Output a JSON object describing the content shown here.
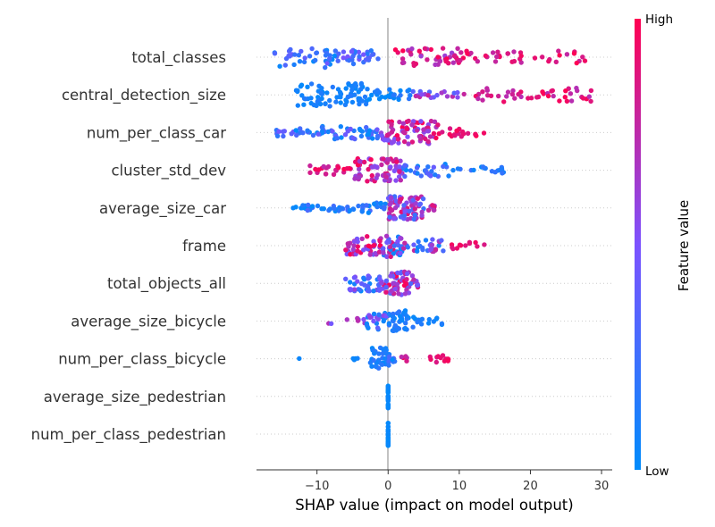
{
  "chart_data": {
    "type": "scatter",
    "subtype": "shap-beeswarm",
    "xlabel": "SHAP value (impact on model output)",
    "xlim": [
      -18.5,
      31.5
    ],
    "xticks": [
      -10,
      0,
      10,
      20,
      30
    ],
    "xtick_labels": [
      "−10",
      "0",
      "10",
      "20",
      "30"
    ],
    "colorbar": {
      "title": "Feature value",
      "high_label": "High",
      "low_label": "Low",
      "low_color": "#008bfb",
      "mid_color": "#7c52ff",
      "high_color": "#ff0052"
    },
    "zero_line_color": "#999999",
    "features": [
      {
        "name": "total_classes",
        "segments": [
          {
            "from": -16,
            "to": -7,
            "n": 40,
            "spread": 0.9,
            "lo": 0.0,
            "hi": 0.45
          },
          {
            "from": -7,
            "to": -1,
            "n": 30,
            "spread": 0.6,
            "lo": 0.1,
            "hi": 0.5
          },
          {
            "from": 1,
            "to": 10,
            "n": 45,
            "spread": 0.8,
            "lo": 0.6,
            "hi": 1.0
          },
          {
            "from": 10,
            "to": 28,
            "n": 40,
            "spread": 0.55,
            "lo": 0.75,
            "hi": 1.0
          }
        ]
      },
      {
        "name": "central_detection_size",
        "segments": [
          {
            "from": -13,
            "to": -3,
            "n": 75,
            "spread": 1.0,
            "lo": 0.0,
            "hi": 0.15
          },
          {
            "from": -3,
            "to": 3.5,
            "n": 25,
            "spread": 0.5,
            "lo": 0.0,
            "hi": 0.2
          },
          {
            "from": 3.5,
            "to": 12,
            "n": 20,
            "spread": 0.3,
            "lo": 0.3,
            "hi": 0.8
          },
          {
            "from": 12,
            "to": 29,
            "n": 45,
            "spread": 0.6,
            "lo": 0.7,
            "hi": 1.0
          }
        ]
      },
      {
        "name": "num_per_class_car",
        "segments": [
          {
            "from": -16,
            "to": -10,
            "n": 20,
            "spread": 0.35,
            "lo": 0.0,
            "hi": 0.5
          },
          {
            "from": -10,
            "to": -1,
            "n": 50,
            "spread": 0.6,
            "lo": 0.0,
            "hi": 0.45
          },
          {
            "from": -1,
            "to": 7,
            "n": 80,
            "spread": 1.0,
            "lo": 0.45,
            "hi": 1.0
          },
          {
            "from": 7,
            "to": 13.5,
            "n": 18,
            "spread": 0.35,
            "lo": 0.8,
            "hi": 1.0
          }
        ]
      },
      {
        "name": "cluster_std_dev",
        "segments": [
          {
            "from": -11,
            "to": -5,
            "n": 22,
            "spread": 0.4,
            "lo": 0.75,
            "hi": 1.0
          },
          {
            "from": -5,
            "to": 2,
            "n": 70,
            "spread": 1.0,
            "lo": 0.5,
            "hi": 1.0
          },
          {
            "from": 2,
            "to": 9,
            "n": 30,
            "spread": 0.55,
            "lo": 0.0,
            "hi": 0.45
          },
          {
            "from": 9,
            "to": 17,
            "n": 18,
            "spread": 0.3,
            "lo": 0.0,
            "hi": 0.25
          }
        ]
      },
      {
        "name": "average_size_car",
        "segments": [
          {
            "from": -15,
            "to": -11,
            "n": 5,
            "spread": 0.1,
            "lo": 0.0,
            "hi": 0.1
          },
          {
            "from": -12,
            "to": -4,
            "n": 30,
            "spread": 0.3,
            "lo": 0.0,
            "hi": 0.3
          },
          {
            "from": -4,
            "to": 0,
            "n": 20,
            "spread": 0.45,
            "lo": 0.0,
            "hi": 0.3
          },
          {
            "from": 0,
            "to": 5,
            "n": 80,
            "spread": 1.0,
            "lo": 0.2,
            "hi": 0.9
          },
          {
            "from": 5,
            "to": 7,
            "n": 8,
            "spread": 0.25,
            "lo": 0.5,
            "hi": 0.9
          }
        ]
      },
      {
        "name": "frame",
        "segments": [
          {
            "from": -6,
            "to": -1,
            "n": 45,
            "spread": 0.8,
            "lo": 0.4,
            "hi": 1.0
          },
          {
            "from": -1,
            "to": 2,
            "n": 40,
            "spread": 1.0,
            "lo": 0.0,
            "hi": 1.0
          },
          {
            "from": 2,
            "to": 8,
            "n": 30,
            "spread": 0.55,
            "lo": 0.0,
            "hi": 0.8
          },
          {
            "from": 8,
            "to": 14,
            "n": 12,
            "spread": 0.3,
            "lo": 0.85,
            "hi": 1.0
          }
        ]
      },
      {
        "name": "total_objects_all",
        "segments": [
          {
            "from": -6,
            "to": -1,
            "n": 40,
            "spread": 0.7,
            "lo": 0.0,
            "hi": 0.6
          },
          {
            "from": -1,
            "to": 3.5,
            "n": 60,
            "spread": 1.0,
            "lo": 0.3,
            "hi": 1.0
          },
          {
            "from": 3.5,
            "to": 4.5,
            "n": 8,
            "spread": 0.4,
            "lo": 0.4,
            "hi": 0.9
          }
        ]
      },
      {
        "name": "average_size_bicycle",
        "segments": [
          {
            "from": -8.5,
            "to": -3,
            "n": 8,
            "spread": 0.25,
            "lo": 0.45,
            "hi": 0.75
          },
          {
            "from": -3,
            "to": 0,
            "n": 25,
            "spread": 0.75,
            "lo": 0.0,
            "hi": 0.6
          },
          {
            "from": 0,
            "to": 4,
            "n": 40,
            "spread": 0.9,
            "lo": 0.0,
            "hi": 0.2
          },
          {
            "from": 4,
            "to": 8,
            "n": 12,
            "spread": 0.3,
            "lo": 0.0,
            "hi": 0.15
          }
        ]
      },
      {
        "name": "num_per_class_bicycle",
        "segments": [
          {
            "from": -12.5,
            "to": -12.5,
            "n": 1,
            "spread": 0.05,
            "lo": 0.0,
            "hi": 0.05
          },
          {
            "from": -5,
            "to": -3,
            "n": 4,
            "spread": 0.1,
            "lo": 0.0,
            "hi": 0.1
          },
          {
            "from": -2.5,
            "to": 0,
            "n": 35,
            "spread": 1.0,
            "lo": 0.0,
            "hi": 0.2
          },
          {
            "from": 0,
            "to": 1,
            "n": 10,
            "spread": 0.6,
            "lo": 0.0,
            "hi": 0.3
          },
          {
            "from": 1,
            "to": 3,
            "n": 5,
            "spread": 0.2,
            "lo": 0.7,
            "hi": 1.0
          },
          {
            "from": 5.5,
            "to": 8.5,
            "n": 12,
            "spread": 0.3,
            "lo": 0.85,
            "hi": 1.0
          }
        ]
      },
      {
        "name": "average_size_pedestrian",
        "segments": [
          {
            "from": 0,
            "to": 0,
            "n": 30,
            "spread": 1.0,
            "lo": 0.0,
            "hi": 0.05
          }
        ]
      },
      {
        "name": "num_per_class_pedestrian",
        "segments": [
          {
            "from": 0,
            "to": 0,
            "n": 30,
            "spread": 1.0,
            "lo": 0.0,
            "hi": 0.05
          }
        ]
      }
    ]
  }
}
